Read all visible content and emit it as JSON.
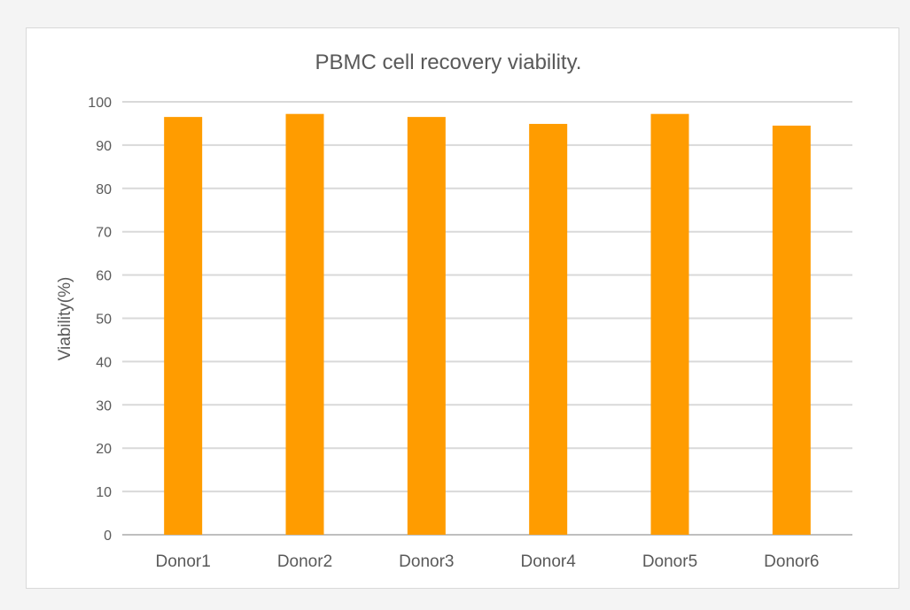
{
  "chart_data": {
    "type": "bar",
    "title": "PBMC cell recovery viability.",
    "xlabel": "",
    "ylabel": "Viability(%)",
    "categories": [
      "Donor1",
      "Donor2",
      "Donor3",
      "Donor4",
      "Donor5",
      "Donor6"
    ],
    "values": [
      96.5,
      97.2,
      96.5,
      94.9,
      97.2,
      94.5
    ],
    "ylim": [
      0,
      100
    ],
    "yticks": [
      0,
      10,
      20,
      30,
      40,
      50,
      60,
      70,
      80,
      90,
      100
    ],
    "grid": true,
    "legend": "none",
    "bar_color": "#ff9c00"
  }
}
